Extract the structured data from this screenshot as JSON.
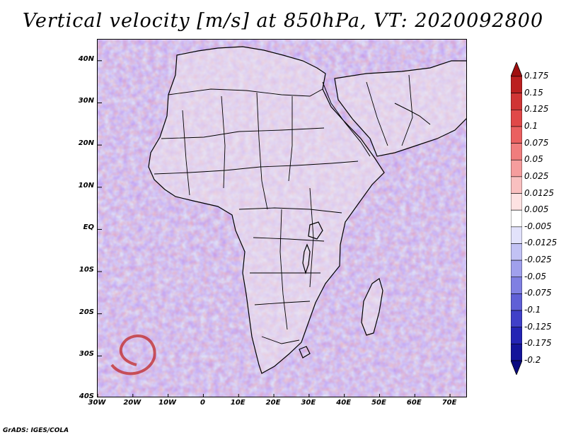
{
  "title": "Vertical velocity [m/s] at 850hPa, VT: 2020092800",
  "credit": "GrADS: IGES/COLA",
  "map": {
    "lat_ticks": [
      "40N",
      "30N",
      "20N",
      "10N",
      "EQ",
      "10S",
      "20S",
      "30S",
      "40S"
    ],
    "lon_ticks": [
      "30W",
      "20W",
      "10W",
      "0",
      "10E",
      "20E",
      "30E",
      "40E",
      "50E",
      "60E",
      "70E"
    ],
    "lat_range": [
      -40,
      45
    ],
    "lon_range": [
      -30,
      75
    ]
  },
  "colorbar": {
    "labels": [
      "0.175",
      "0.15",
      "0.125",
      "0.1",
      "0.075",
      "0.05",
      "0.025",
      "0.0125",
      "0.005",
      "-0.005",
      "-0.0125",
      "-0.025",
      "-0.05",
      "-0.075",
      "-0.1",
      "-0.125",
      "-0.175",
      "-0.2"
    ],
    "colors": [
      "#a01010",
      "#bb2020",
      "#d03535",
      "#e04848",
      "#ea6060",
      "#f07d7d",
      "#f59d9d",
      "#f9c0c0",
      "#fde2e2",
      "#ffffff",
      "#e2e2fb",
      "#c2c2f4",
      "#a0a0ec",
      "#8080e2",
      "#6060d6",
      "#4040c8",
      "#2424b4",
      "#14149a",
      "#0a0a80"
    ]
  }
}
